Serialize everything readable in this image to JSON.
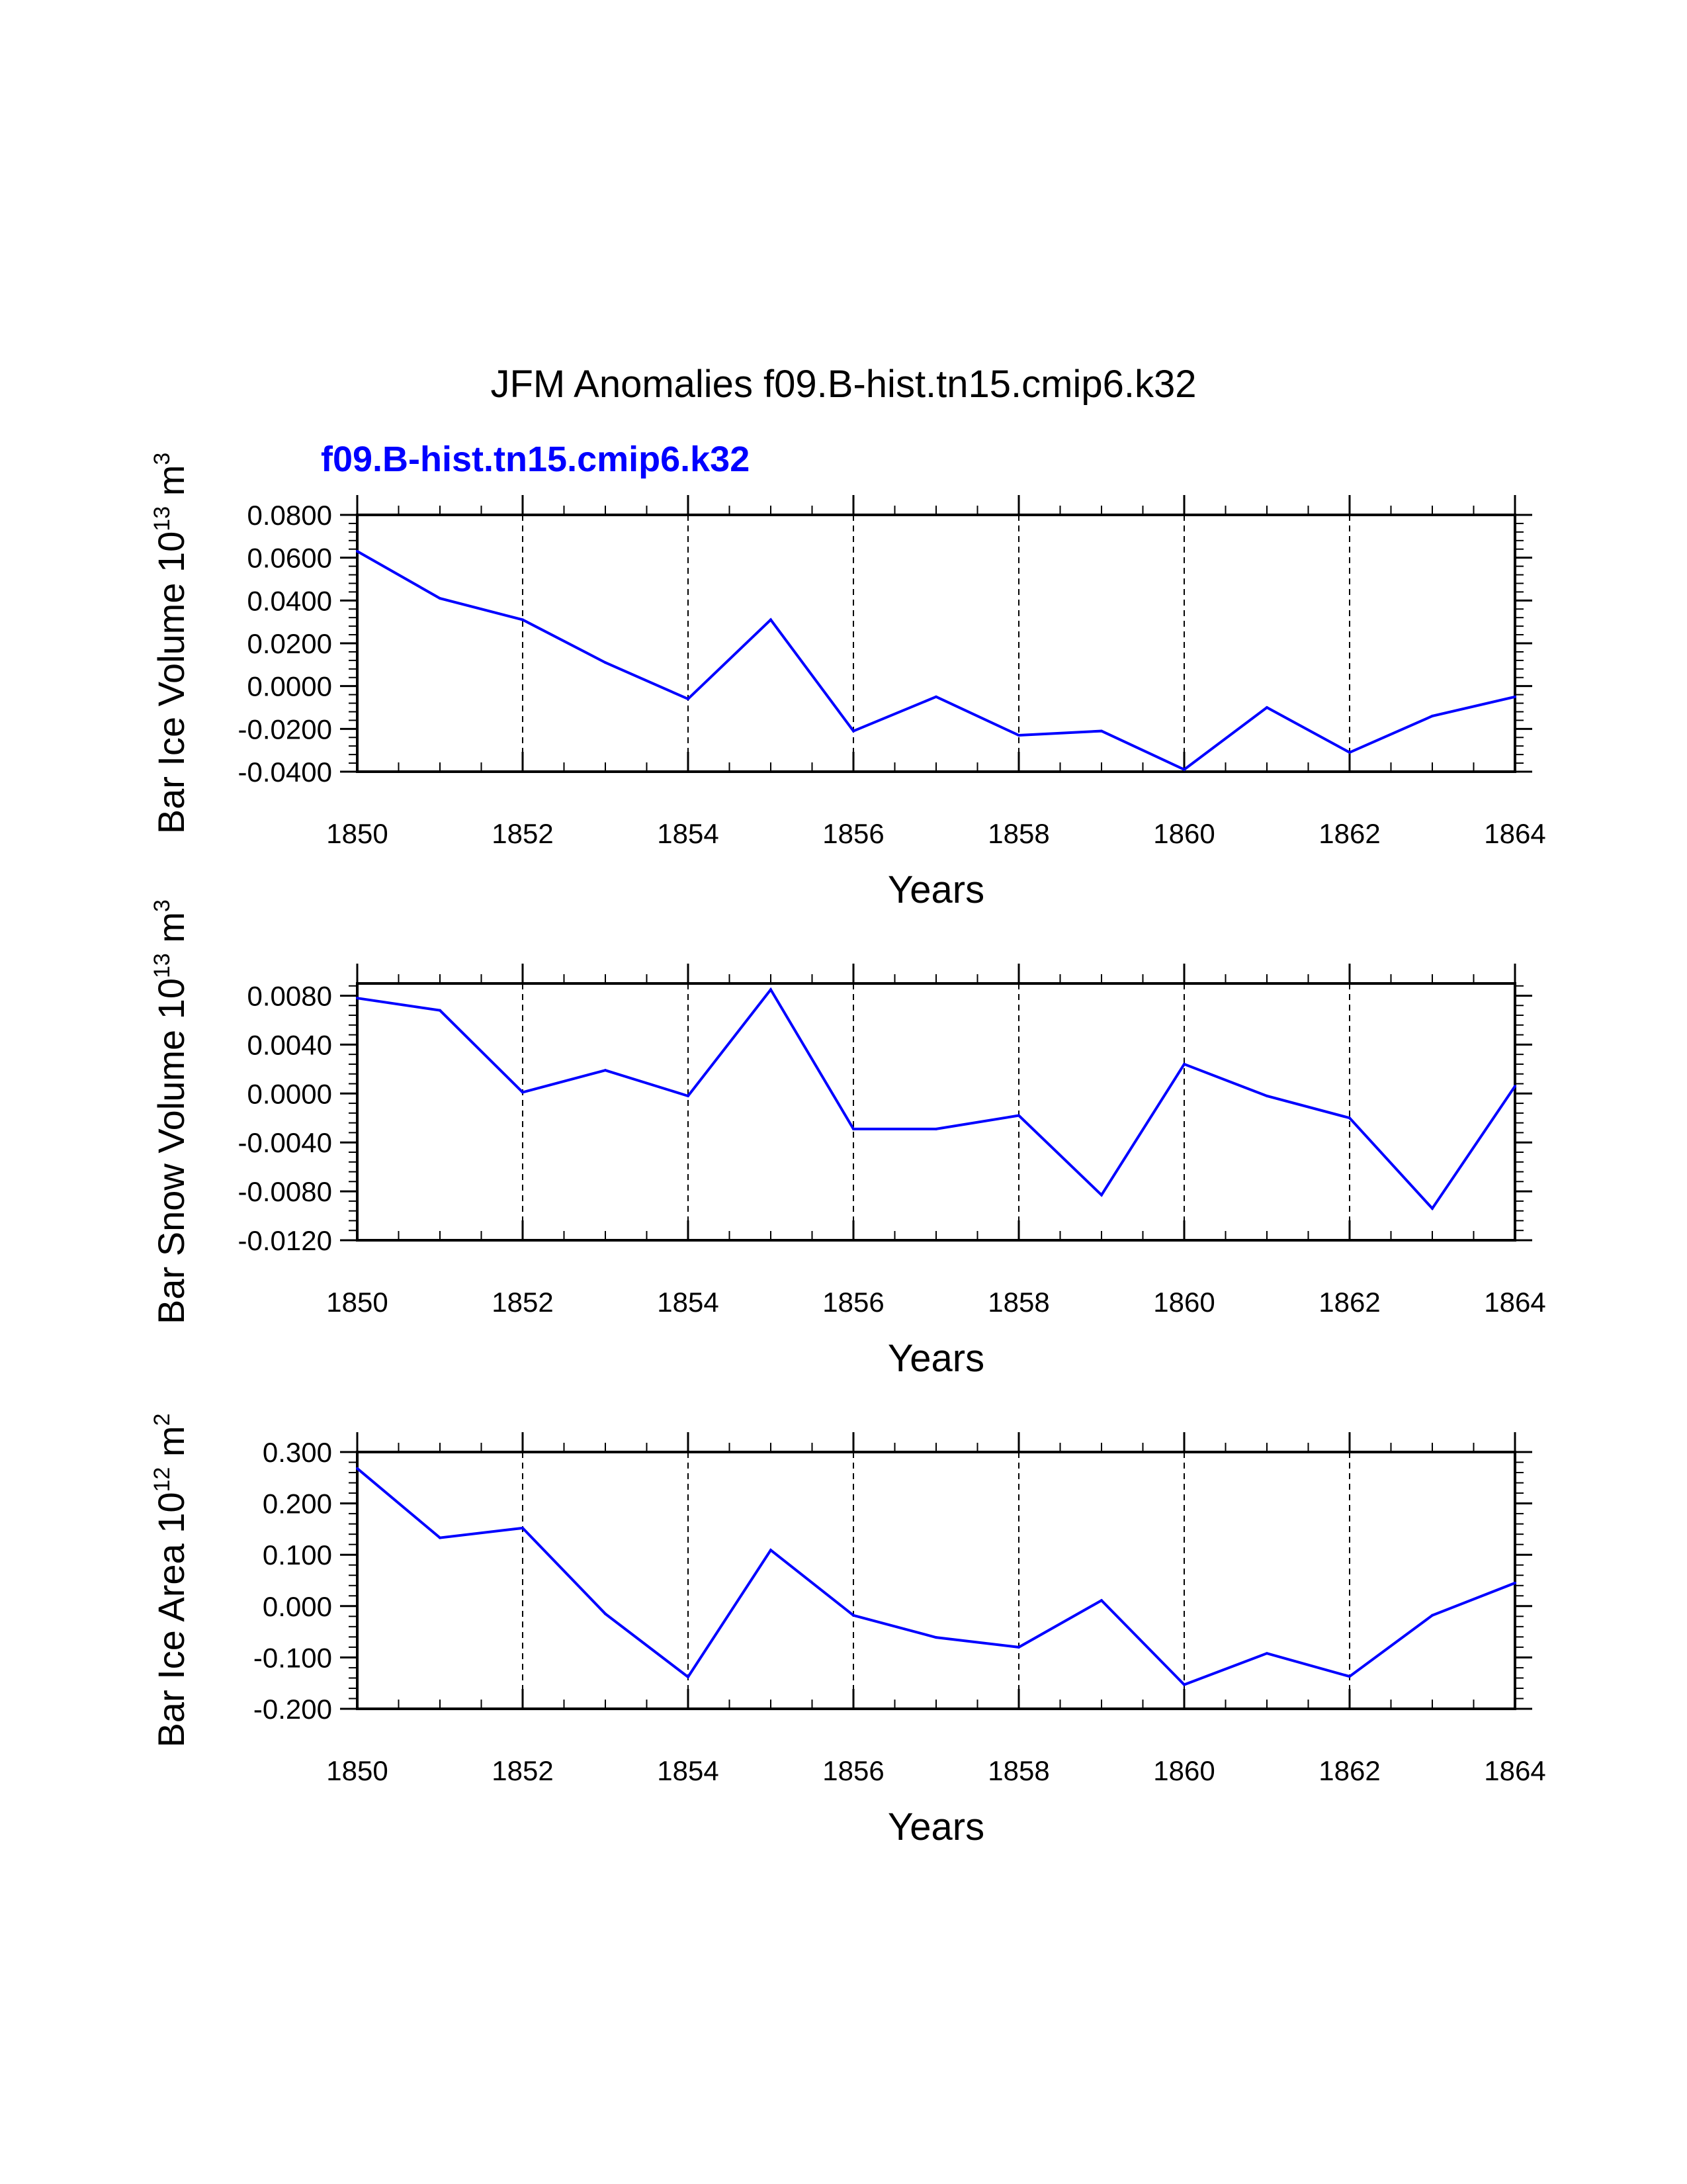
{
  "figure": {
    "title": "JFM Anomalies f09.B-hist.tn15.cmip6.k32",
    "subtitle": "f09.B-hist.tn15.cmip6.k32",
    "subtitle_color": "#0000ff",
    "line_color": "#0000ff"
  },
  "chart_data": [
    {
      "type": "line",
      "ylabel": "Bar Ice Volume 10^13 m^3",
      "ylabel_parts": [
        "Bar Ice Volume 10",
        "13",
        " m",
        "3"
      ],
      "xlabel": "Years",
      "xlim": [
        1850,
        1864
      ],
      "ylim": [
        -0.04,
        0.08
      ],
      "x_ticks": [
        "1850",
        "1852",
        "1854",
        "1856",
        "1858",
        "1860",
        "1862",
        "1864"
      ],
      "y_ticks": [
        "0.0800",
        "0.0600",
        "0.0400",
        "0.0200",
        "0.0000",
        "-0.0200",
        "-0.0400"
      ],
      "y_tick_values": [
        0.08,
        0.06,
        0.04,
        0.02,
        0.0,
        -0.02,
        -0.04
      ],
      "grid": "dashed vertical at labeled years",
      "x": [
        1850,
        1851,
        1852,
        1853,
        1854,
        1855,
        1856,
        1857,
        1858,
        1859,
        1860,
        1861,
        1862,
        1863,
        1864
      ],
      "values": [
        0.063,
        0.041,
        0.031,
        0.011,
        -0.006,
        0.031,
        -0.021,
        -0.005,
        -0.023,
        -0.021,
        -0.039,
        -0.01,
        -0.031,
        -0.014,
        -0.005
      ]
    },
    {
      "type": "line",
      "ylabel": "Bar Snow Volume 10^13 m^3",
      "ylabel_parts": [
        "Bar Snow Volume 10",
        "13",
        " m",
        "3"
      ],
      "xlabel": "Years",
      "xlim": [
        1850,
        1864
      ],
      "ylim": [
        -0.012,
        0.009
      ],
      "x_ticks": [
        "1850",
        "1852",
        "1854",
        "1856",
        "1858",
        "1860",
        "1862",
        "1864"
      ],
      "y_ticks": [
        "0.0080",
        "0.0040",
        "0.0000",
        "-0.0040",
        "-0.0080",
        "-0.0120"
      ],
      "y_tick_values": [
        0.008,
        0.004,
        0.0,
        -0.004,
        -0.008,
        -0.012
      ],
      "grid": "dashed vertical at labeled years",
      "x": [
        1850,
        1851,
        1852,
        1853,
        1854,
        1855,
        1856,
        1857,
        1858,
        1859,
        1860,
        1861,
        1862,
        1863,
        1864
      ],
      "values": [
        0.0078,
        0.0068,
        0.0001,
        0.0019,
        -0.0002,
        0.0085,
        -0.0029,
        -0.0029,
        -0.0018,
        -0.0083,
        0.0024,
        -0.0002,
        -0.002,
        -0.0094,
        0.0006
      ]
    },
    {
      "type": "line",
      "ylabel": "Bar Ice Area 10^12 m^2",
      "ylabel_parts": [
        "Bar Ice Area 10",
        "12",
        " m",
        "2"
      ],
      "xlabel": "Years",
      "xlim": [
        1850,
        1864
      ],
      "ylim": [
        -0.2,
        0.3
      ],
      "x_ticks": [
        "1850",
        "1852",
        "1854",
        "1856",
        "1858",
        "1860",
        "1862",
        "1864"
      ],
      "y_ticks": [
        "0.300",
        "0.200",
        "0.100",
        "0.000",
        "-0.100",
        "-0.200"
      ],
      "y_tick_values": [
        0.3,
        0.2,
        0.1,
        0.0,
        -0.1,
        -0.2
      ],
      "grid": "dashed vertical at labeled years",
      "x": [
        1850,
        1851,
        1852,
        1853,
        1854,
        1855,
        1856,
        1857,
        1858,
        1859,
        1860,
        1861,
        1862,
        1863,
        1864
      ],
      "values": [
        0.268,
        0.133,
        0.152,
        -0.015,
        -0.138,
        0.109,
        -0.018,
        -0.061,
        -0.08,
        0.011,
        -0.153,
        -0.092,
        -0.137,
        -0.018,
        0.045
      ]
    }
  ]
}
